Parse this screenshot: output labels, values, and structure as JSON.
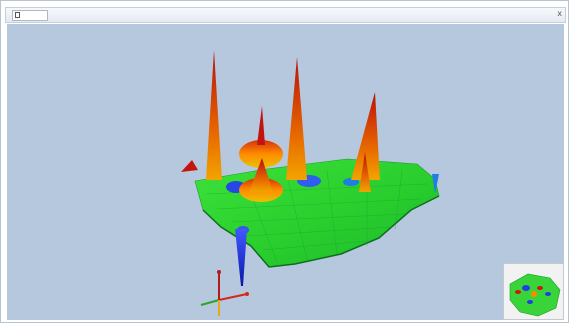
{
  "window": {
    "tab_label": "",
    "close_glyph": "x"
  },
  "viewport": {
    "background": "#b5c8dd",
    "surface_colors": {
      "low": "#1a2fd6",
      "mid": "#23d12b",
      "high": "#ff8a00",
      "peak": "#c4140c"
    }
  },
  "axis_triad": {
    "x_color": "#d7261c",
    "y_color": "#2aa52a",
    "z_color": "#e8a81a"
  },
  "minimap": {
    "background": "#f2f2f2"
  }
}
